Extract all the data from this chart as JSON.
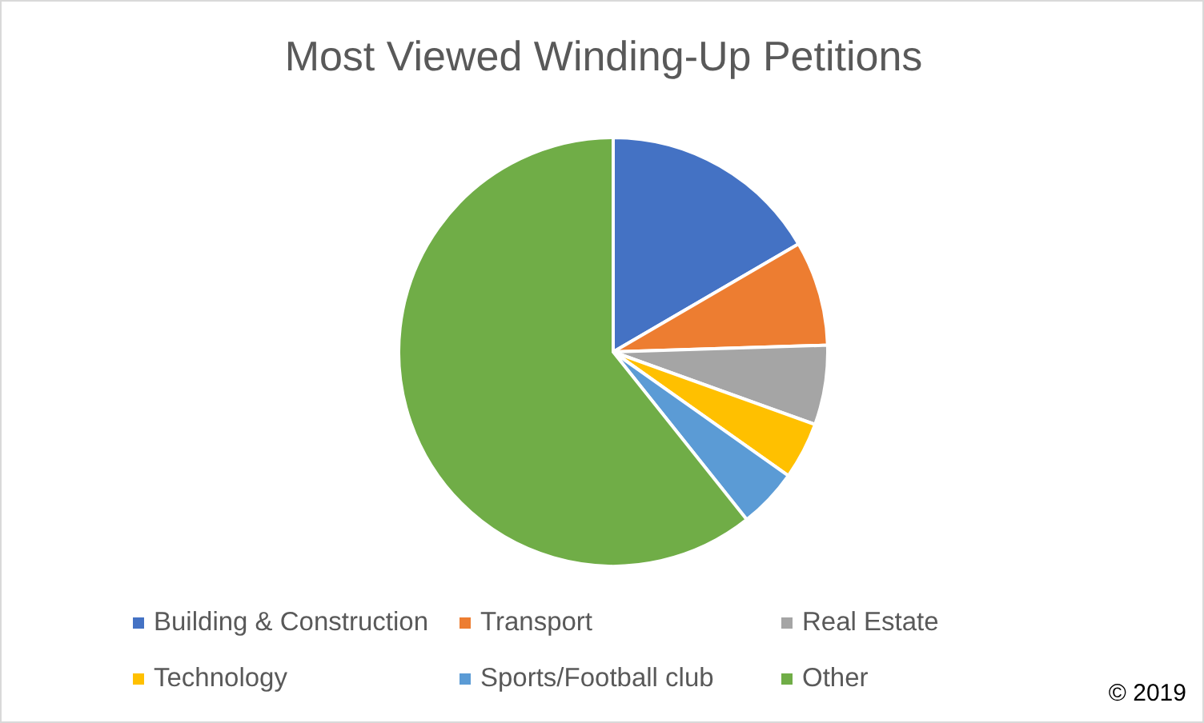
{
  "chart_data": {
    "type": "pie",
    "title": "Most Viewed Winding-Up Petitions",
    "categories": [
      "Building & Construction",
      "Transport",
      "Real Estate",
      "Technology",
      "Sports/Football club",
      "Other"
    ],
    "values": [
      16.6,
      7.9,
      6.0,
      4.3,
      4.5,
      60.7
    ],
    "colors": [
      "#4472c4",
      "#ed7d31",
      "#a5a5a5",
      "#ffc000",
      "#5b9bd5",
      "#70ad47"
    ],
    "legend": "bottom",
    "annotations": [
      "© 2019"
    ]
  }
}
